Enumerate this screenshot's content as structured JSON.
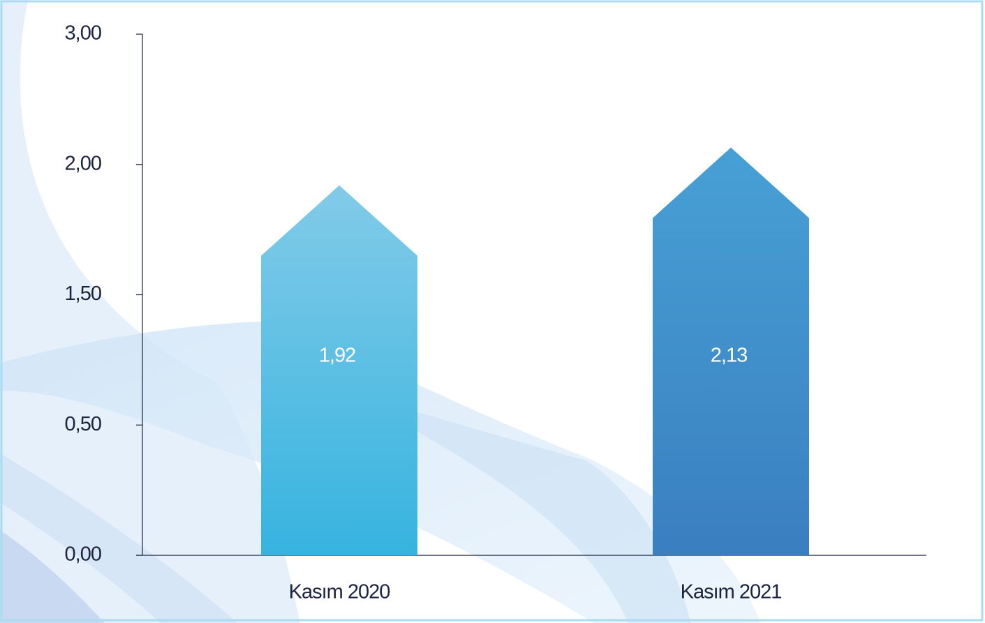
{
  "chart_data": {
    "type": "bar",
    "categories": [
      "Kasım 2020",
      "Kasım 2021"
    ],
    "values": [
      1.92,
      2.13
    ],
    "value_labels": [
      "1,92",
      "2,13"
    ],
    "colors": [
      [
        "#82cbe8",
        "#36b3df"
      ],
      [
        "#47a0d5",
        "#3a7fc0"
      ]
    ],
    "ylim": [
      0,
      3
    ],
    "yticks": [
      {
        "value": 0,
        "label": "0,00"
      },
      {
        "value": 0.5,
        "label": "0,50"
      },
      {
        "value": 1.5,
        "label": "1,50"
      },
      {
        "value": 2,
        "label": "2,00"
      },
      {
        "value": 3,
        "label": "3,00"
      }
    ]
  }
}
